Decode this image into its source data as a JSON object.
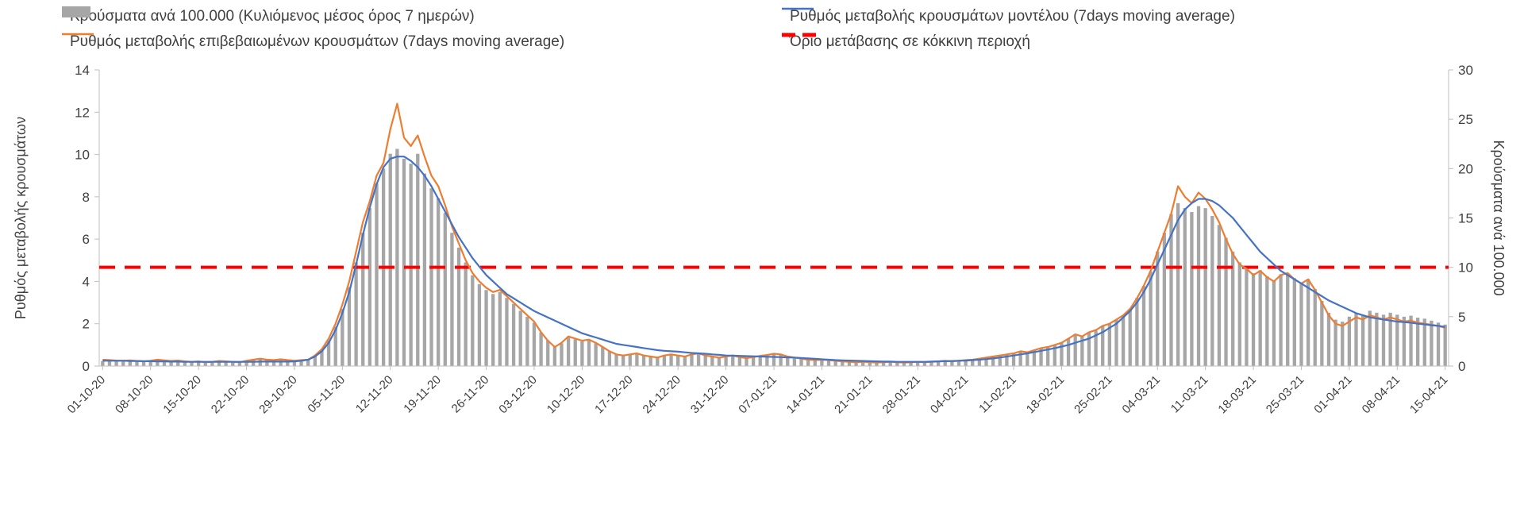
{
  "page": {
    "background": "#ffffff",
    "text_color": "#404040",
    "axis_line_color": "#bfbfbf"
  },
  "chart_data": {
    "type": "combo",
    "subtype": [
      "bar",
      "line",
      "line",
      "threshold"
    ],
    "grid": false,
    "legend_position": "top",
    "n_points": 197,
    "days_per_tick": 7,
    "x_tick_labels": [
      "01-10-20",
      "08-10-20",
      "15-10-20",
      "22-10-20",
      "29-10-20",
      "05-11-20",
      "12-11-20",
      "19-11-20",
      "26-11-20",
      "03-12-20",
      "10-12-20",
      "17-12-20",
      "24-12-20",
      "31-12-20",
      "07-01-21",
      "14-01-21",
      "21-01-21",
      "28-01-21",
      "04-02-21",
      "11-02-21",
      "18-02-21",
      "25-02-21",
      "04-03-21",
      "11-03-21",
      "18-03-21",
      "25-03-21",
      "01-04-21",
      "08-04-21",
      "15-04-21"
    ],
    "left_axis": {
      "label": "Ρυθμός μεταβολής κρουσμάτων",
      "min": 0,
      "max": 14,
      "ticks": [
        0,
        2,
        4,
        6,
        8,
        10,
        12,
        14
      ]
    },
    "right_axis": {
      "label": "Κρούσματα ανά 100.000",
      "min": 0,
      "max": 30,
      "ticks": [
        0,
        5,
        10,
        15,
        20,
        25,
        30
      ]
    },
    "series": [
      {
        "name": "Κρούσματα ανά 100.000 (Κυλιόμενος μέσος όρος 7 ημερών)",
        "type": "bar",
        "axis": "right",
        "color": "#a6a6a6",
        "values": [
          0.5,
          0.55,
          0.5,
          0.5,
          0.55,
          0.5,
          0.45,
          0.5,
          0.55,
          0.5,
          0.45,
          0.5,
          0.45,
          0.4,
          0.45,
          0.4,
          0.45,
          0.5,
          0.45,
          0.4,
          0.4,
          0.5,
          0.6,
          0.7,
          0.65,
          0.6,
          0.65,
          0.6,
          0.55,
          0.6,
          0.7,
          1.0,
          1.6,
          2.6,
          4.0,
          5.8,
          8.0,
          10.5,
          13.5,
          16.0,
          18.5,
          20.0,
          21.5,
          22.0,
          21.0,
          20.5,
          21.5,
          19.5,
          18.0,
          17.0,
          15.5,
          13.5,
          12.0,
          10.5,
          9.2,
          8.3,
          7.7,
          7.3,
          7.5,
          6.9,
          6.3,
          5.6,
          5.0,
          4.4,
          3.4,
          2.6,
          2.0,
          2.3,
          2.9,
          2.7,
          2.5,
          2.6,
          2.3,
          1.9,
          1.5,
          1.2,
          1.1,
          1.2,
          1.3,
          1.1,
          1.0,
          0.9,
          1.1,
          1.2,
          1.1,
          1.0,
          1.2,
          1.3,
          1.1,
          1.0,
          0.9,
          1.0,
          1.1,
          0.9,
          0.85,
          0.9,
          1.0,
          1.1,
          1.25,
          1.2,
          1.0,
          0.9,
          0.8,
          0.7,
          0.6,
          0.65,
          0.6,
          0.55,
          0.5,
          0.45,
          0.4,
          0.45,
          0.4,
          0.35,
          0.4,
          0.45,
          0.4,
          0.35,
          0.4,
          0.45,
          0.4,
          0.45,
          0.5,
          0.55,
          0.5,
          0.55,
          0.6,
          0.65,
          0.75,
          0.85,
          1.0,
          1.1,
          1.2,
          1.3,
          1.5,
          1.4,
          1.6,
          1.8,
          1.9,
          2.1,
          2.4,
          2.8,
          3.2,
          3.0,
          3.4,
          3.6,
          4.1,
          4.3,
          4.7,
          5.1,
          5.8,
          6.9,
          8.1,
          9.6,
          11.6,
          13.5,
          15.4,
          16.5,
          16.0,
          15.6,
          16.2,
          16.0,
          15.2,
          14.3,
          13.0,
          11.6,
          10.5,
          10.0,
          9.4,
          9.7,
          9.1,
          8.7,
          9.3,
          9.4,
          8.9,
          8.4,
          8.8,
          7.8,
          6.6,
          5.4,
          4.7,
          4.5,
          5.0,
          5.4,
          5.2,
          5.6,
          5.4,
          5.2,
          5.4,
          5.2,
          5.0,
          5.1,
          4.9,
          4.8,
          4.6,
          4.4,
          4.2
        ]
      },
      {
        "name": "Ρυθμός μεταβολής κρουσμάτων μοντέλου (7days moving average)",
        "type": "line",
        "axis": "left",
        "color": "#4472c4",
        "values": [
          0.25,
          0.25,
          0.25,
          0.25,
          0.24,
          0.24,
          0.23,
          0.23,
          0.22,
          0.22,
          0.21,
          0.21,
          0.2,
          0.2,
          0.2,
          0.2,
          0.2,
          0.2,
          0.2,
          0.2,
          0.2,
          0.2,
          0.2,
          0.21,
          0.21,
          0.21,
          0.21,
          0.21,
          0.22,
          0.25,
          0.3,
          0.45,
          0.7,
          1.1,
          1.7,
          2.5,
          3.5,
          4.8,
          6.2,
          7.5,
          8.6,
          9.4,
          9.8,
          9.9,
          9.9,
          9.7,
          9.4,
          9.0,
          8.5,
          7.9,
          7.3,
          6.7,
          6.1,
          5.6,
          5.1,
          4.7,
          4.3,
          4.0,
          3.7,
          3.4,
          3.2,
          3.0,
          2.8,
          2.6,
          2.45,
          2.3,
          2.15,
          2.0,
          1.85,
          1.7,
          1.55,
          1.45,
          1.35,
          1.25,
          1.15,
          1.05,
          1.0,
          0.95,
          0.9,
          0.85,
          0.8,
          0.75,
          0.72,
          0.7,
          0.68,
          0.65,
          0.62,
          0.6,
          0.58,
          0.55,
          0.53,
          0.5,
          0.49,
          0.48,
          0.47,
          0.46,
          0.45,
          0.44,
          0.43,
          0.42,
          0.41,
          0.4,
          0.38,
          0.36,
          0.34,
          0.32,
          0.3,
          0.28,
          0.27,
          0.26,
          0.25,
          0.24,
          0.23,
          0.22,
          0.21,
          0.21,
          0.2,
          0.2,
          0.2,
          0.2,
          0.2,
          0.21,
          0.22,
          0.23,
          0.24,
          0.25,
          0.26,
          0.28,
          0.3,
          0.33,
          0.36,
          0.4,
          0.45,
          0.5,
          0.55,
          0.6,
          0.66,
          0.72,
          0.78,
          0.85,
          0.92,
          1.0,
          1.1,
          1.2,
          1.3,
          1.45,
          1.6,
          1.8,
          2.0,
          2.3,
          2.6,
          3.0,
          3.5,
          4.1,
          4.8,
          5.5,
          6.2,
          6.9,
          7.4,
          7.7,
          7.9,
          7.9,
          7.8,
          7.6,
          7.3,
          7.0,
          6.6,
          6.2,
          5.8,
          5.4,
          5.1,
          4.8,
          4.5,
          4.3,
          4.1,
          3.9,
          3.7,
          3.5,
          3.3,
          3.1,
          2.95,
          2.8,
          2.65,
          2.5,
          2.4,
          2.3,
          2.25,
          2.2,
          2.15,
          2.1,
          2.08,
          2.05,
          2.0,
          1.97,
          1.93,
          1.9,
          1.85
        ]
      },
      {
        "name": "Ρυθμός μεταβολής επιβεβαιωμένων κρουσμάτων (7days moving average)",
        "type": "line",
        "axis": "left",
        "color": "#ed7d31",
        "values": [
          0.3,
          0.28,
          0.26,
          0.25,
          0.27,
          0.24,
          0.22,
          0.25,
          0.3,
          0.27,
          0.24,
          0.26,
          0.22,
          0.2,
          0.22,
          0.18,
          0.2,
          0.24,
          0.22,
          0.2,
          0.18,
          0.25,
          0.3,
          0.35,
          0.3,
          0.28,
          0.32,
          0.28,
          0.25,
          0.28,
          0.3,
          0.5,
          0.8,
          1.3,
          2.0,
          2.9,
          4.0,
          5.4,
          6.8,
          7.8,
          9.0,
          9.6,
          11.2,
          12.4,
          10.8,
          10.4,
          10.9,
          9.9,
          9.0,
          8.5,
          7.6,
          6.6,
          5.8,
          5.0,
          4.4,
          4.0,
          3.7,
          3.5,
          3.6,
          3.3,
          3.0,
          2.7,
          2.4,
          2.1,
          1.6,
          1.2,
          0.9,
          1.1,
          1.4,
          1.3,
          1.2,
          1.25,
          1.1,
          0.9,
          0.7,
          0.55,
          0.5,
          0.55,
          0.6,
          0.5,
          0.45,
          0.4,
          0.5,
          0.55,
          0.5,
          0.45,
          0.55,
          0.6,
          0.5,
          0.45,
          0.4,
          0.45,
          0.5,
          0.42,
          0.38,
          0.42,
          0.48,
          0.52,
          0.58,
          0.55,
          0.45,
          0.4,
          0.35,
          0.3,
          0.28,
          0.3,
          0.28,
          0.25,
          0.22,
          0.2,
          0.18,
          0.2,
          0.18,
          0.16,
          0.18,
          0.2,
          0.18,
          0.16,
          0.18,
          0.2,
          0.18,
          0.2,
          0.22,
          0.25,
          0.22,
          0.25,
          0.28,
          0.3,
          0.35,
          0.4,
          0.45,
          0.5,
          0.55,
          0.6,
          0.7,
          0.65,
          0.75,
          0.85,
          0.9,
          1.0,
          1.1,
          1.3,
          1.5,
          1.4,
          1.6,
          1.7,
          1.9,
          2.0,
          2.2,
          2.4,
          2.7,
          3.2,
          3.8,
          4.5,
          5.4,
          6.3,
          7.2,
          8.5,
          8.0,
          7.7,
          8.2,
          7.9,
          7.4,
          6.8,
          6.0,
          5.3,
          4.8,
          4.6,
          4.3,
          4.5,
          4.2,
          4.0,
          4.3,
          4.4,
          4.1,
          3.9,
          4.1,
          3.6,
          3.0,
          2.4,
          2.0,
          1.9,
          2.1,
          2.3,
          2.2,
          2.4,
          2.3,
          2.2,
          2.3,
          2.2,
          2.1,
          2.15,
          2.05,
          2.0,
          1.95,
          1.9,
          1.8
        ]
      },
      {
        "name": "Όριο μετάβασης σε κόκκινη περιοχή",
        "type": "threshold",
        "axis": "right",
        "color": "#ff0000",
        "value": 10
      }
    ]
  }
}
